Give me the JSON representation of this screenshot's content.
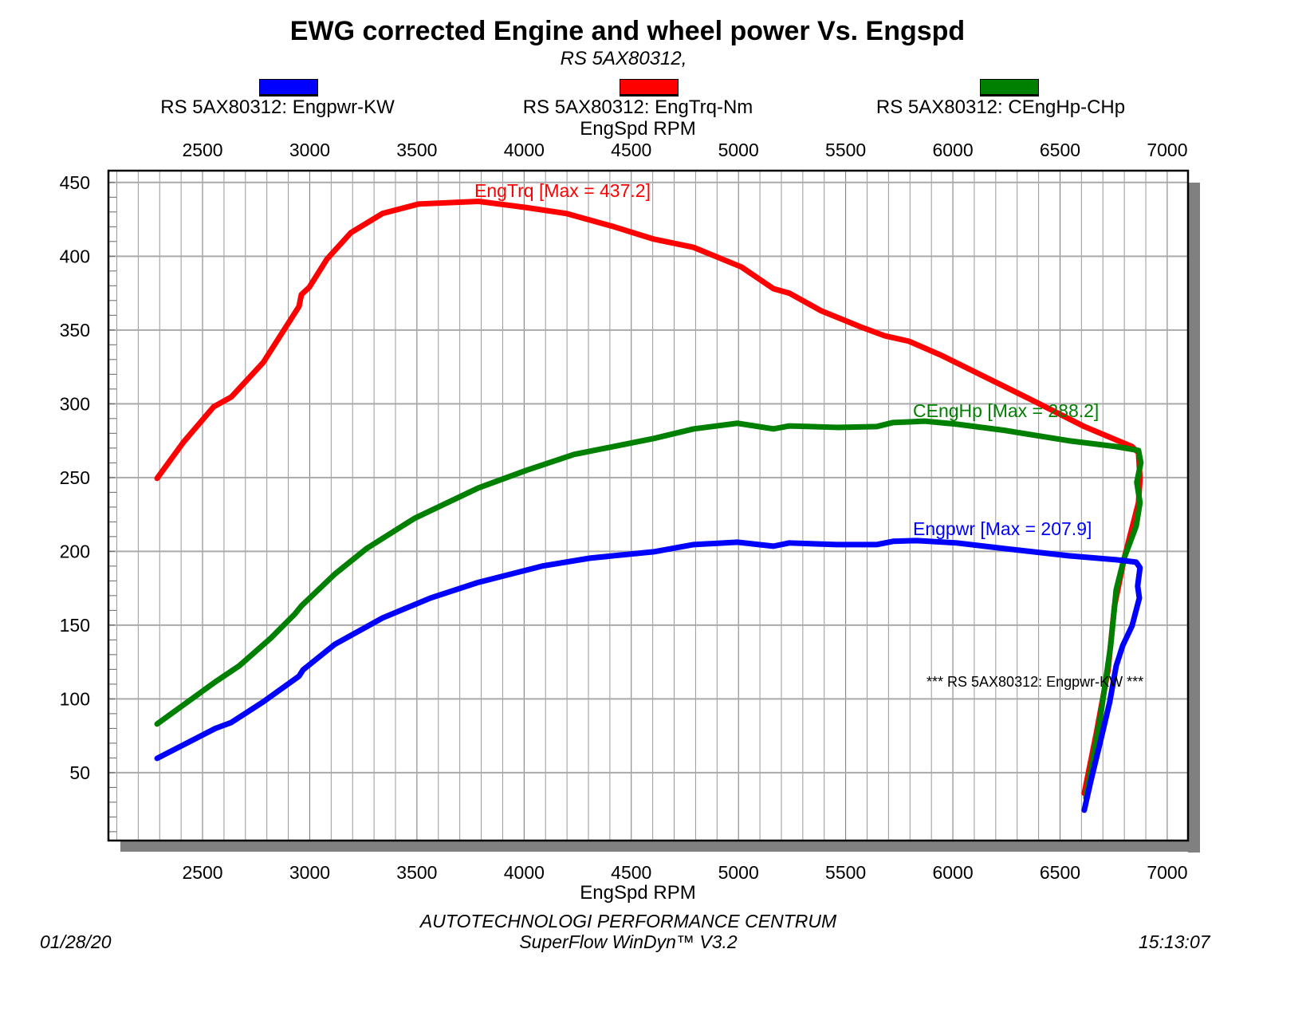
{
  "chart_data": {
    "type": "line",
    "title": "EWG corrected Engine and wheel power Vs. Engspd",
    "subtitle": "RS 5AX80312,",
    "xlabel": "EngSpd RPM",
    "ylabel": "",
    "xlim": [
      2061,
      7097
    ],
    "ylim": [
      4,
      458
    ],
    "xticks": [
      2500,
      3000,
      3500,
      4000,
      4500,
      5000,
      5500,
      6000,
      6500,
      7000
    ],
    "yticks": [
      50,
      100,
      150,
      200,
      250,
      300,
      350,
      400,
      450
    ],
    "grid": true,
    "legend_position": "top",
    "series": [
      {
        "name": "RS 5AX80312: Engpwr-KW",
        "color": "#0000ff",
        "annotation": "Engpwr [Max = 207.9]",
        "points": [
          [
            2288,
            59.7
          ],
          [
            2560,
            80
          ],
          [
            2634,
            84
          ],
          [
            2783,
            98
          ],
          [
            2950,
            115.4
          ],
          [
            2969,
            119.7
          ],
          [
            3117,
            137
          ],
          [
            3340,
            154.9
          ],
          [
            3564,
            168.4
          ],
          [
            3787,
            179
          ],
          [
            4084,
            190
          ],
          [
            4307,
            195.4
          ],
          [
            4605,
            199.7
          ],
          [
            4791,
            204.6
          ],
          [
            4995,
            206.2
          ],
          [
            5163,
            203.5
          ],
          [
            5237,
            205.7
          ],
          [
            5460,
            204.6
          ],
          [
            5646,
            204.6
          ],
          [
            5721,
            206.8
          ],
          [
            5832,
            207.3
          ],
          [
            6018,
            205.7
          ],
          [
            6241,
            201.9
          ],
          [
            6539,
            197
          ],
          [
            6762,
            194.3
          ],
          [
            6855,
            192.7
          ],
          [
            6873,
            188.9
          ],
          [
            6862,
            176.5
          ],
          [
            6870,
            168.4
          ],
          [
            6836,
            149.5
          ],
          [
            6792,
            136
          ],
          [
            6762,
            122.4
          ],
          [
            6732,
            98.1
          ],
          [
            6688,
            71
          ],
          [
            6643,
            44
          ],
          [
            6613,
            24.6
          ]
        ]
      },
      {
        "name": "RS 5AX80312: EngTrq-Nm",
        "color": "#ff0000",
        "annotation": "EngTrq [Max = 437.2]",
        "points": [
          [
            2288,
            249.5
          ],
          [
            2411,
            274
          ],
          [
            2552,
            298
          ],
          [
            2634,
            304.6
          ],
          [
            2783,
            328
          ],
          [
            2950,
            366
          ],
          [
            2961,
            374
          ],
          [
            2998,
            379
          ],
          [
            3080,
            398
          ],
          [
            3192,
            416
          ],
          [
            3340,
            429
          ],
          [
            3508,
            435.4
          ],
          [
            3787,
            437.2
          ],
          [
            4010,
            433
          ],
          [
            4196,
            429
          ],
          [
            4419,
            420
          ],
          [
            4605,
            411.6
          ],
          [
            4791,
            406
          ],
          [
            5014,
            392.7
          ],
          [
            5163,
            378
          ],
          [
            5237,
            375
          ],
          [
            5386,
            363
          ],
          [
            5572,
            352
          ],
          [
            5684,
            346
          ],
          [
            5795,
            342.4
          ],
          [
            5944,
            333
          ],
          [
            6167,
            317
          ],
          [
            6390,
            301
          ],
          [
            6613,
            284.6
          ],
          [
            6836,
            271
          ],
          [
            6866,
            266.8
          ],
          [
            6873,
            249.5
          ],
          [
            6866,
            233
          ],
          [
            6799,
            195
          ],
          [
            6754,
            163
          ],
          [
            6724,
            119.7
          ],
          [
            6669,
            76.5
          ],
          [
            6613,
            36
          ]
        ]
      },
      {
        "name": "RS 5AX80312: CEngHp-CHp",
        "color": "#008000",
        "annotation": "CEngHp [Max = 288.2]",
        "points": [
          [
            2288,
            83
          ],
          [
            2560,
            111.6
          ],
          [
            2671,
            122.4
          ],
          [
            2820,
            141.4
          ],
          [
            2931,
            157.6
          ],
          [
            2961,
            163
          ],
          [
            3117,
            184.6
          ],
          [
            3266,
            202
          ],
          [
            3489,
            222.4
          ],
          [
            3787,
            243
          ],
          [
            4010,
            254.9
          ],
          [
            4233,
            265.7
          ],
          [
            4605,
            276.5
          ],
          [
            4791,
            283
          ],
          [
            4995,
            286.8
          ],
          [
            5163,
            283
          ],
          [
            5237,
            285
          ],
          [
            5460,
            284
          ],
          [
            5646,
            284.6
          ],
          [
            5721,
            287.3
          ],
          [
            5869,
            288.2
          ],
          [
            6018,
            286.2
          ],
          [
            6241,
            282
          ],
          [
            6539,
            275
          ],
          [
            6762,
            271
          ],
          [
            6866,
            268.4
          ],
          [
            6877,
            260
          ],
          [
            6858,
            246.8
          ],
          [
            6873,
            233
          ],
          [
            6855,
            217
          ],
          [
            6799,
            195.4
          ],
          [
            6762,
            174
          ],
          [
            6736,
            136
          ],
          [
            6688,
            87.3
          ],
          [
            6621,
            33
          ]
        ]
      }
    ],
    "note": "*** RS 5AX80312: Engpwr-KW     ***"
  },
  "footer": {
    "company": "AUTOTECHNOLOGI PERFORMANCE CENTRUM",
    "software": "SuperFlow WinDyn™ V3.2",
    "date": "01/28/20",
    "time": "15:13:07"
  }
}
